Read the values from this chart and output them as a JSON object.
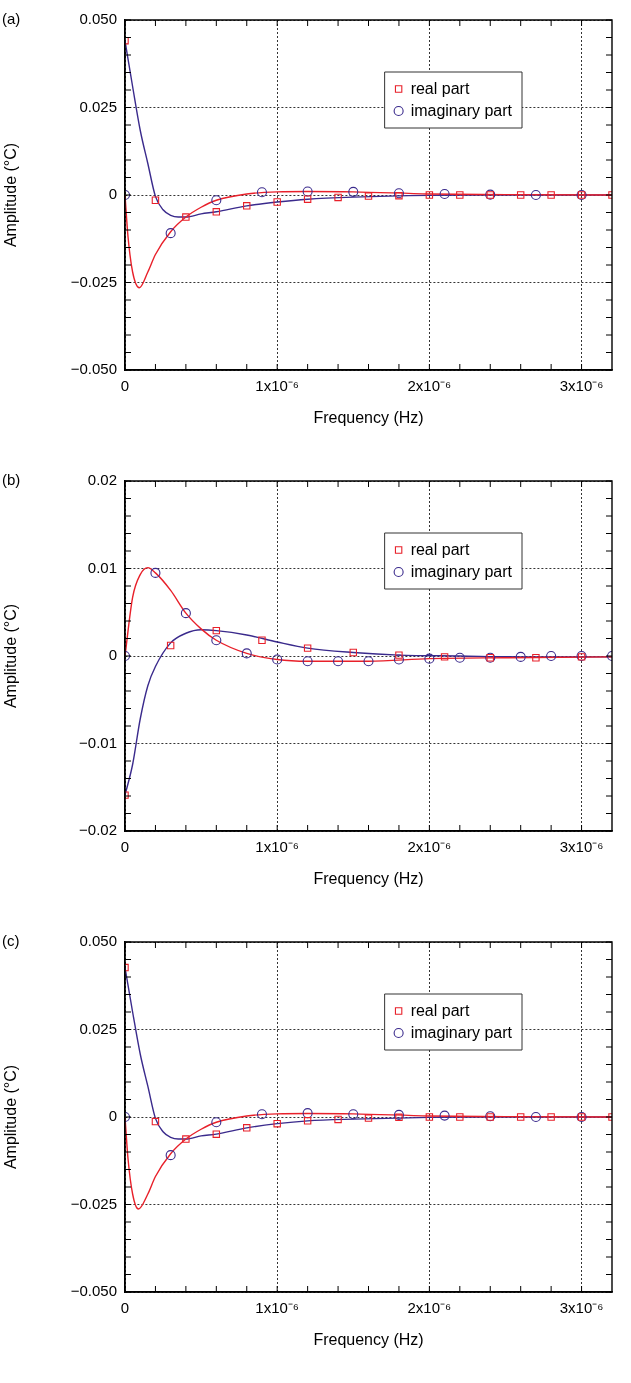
{
  "chart_data": [
    {
      "type": "scatter",
      "title": "(a)",
      "xlabel": "Frequency (Hz)",
      "ylabel": "Amplitude (°C)",
      "xlim": [
        0,
        3.2e-06
      ],
      "ylim": [
        -0.05,
        0.05
      ],
      "grid": true,
      "legend": "top right",
      "xticks": [
        {
          "value": 0,
          "label": "0"
        },
        {
          "value": 2e-07,
          "label": null
        },
        {
          "value": 4e-07,
          "label": null
        },
        {
          "value": 6e-07,
          "label": null
        },
        {
          "value": 8e-07,
          "label": null
        },
        {
          "value": 1e-06,
          "label": "1x10⁻⁶"
        },
        {
          "value": 1.2e-06,
          "label": null
        },
        {
          "value": 1.4e-06,
          "label": null
        },
        {
          "value": 1.6e-06,
          "label": null
        },
        {
          "value": 1.8e-06,
          "label": null
        },
        {
          "value": 2e-06,
          "label": "2x10⁻⁶"
        },
        {
          "value": 2.2e-06,
          "label": null
        },
        {
          "value": 2.4e-06,
          "label": null
        },
        {
          "value": 2.6e-06,
          "label": null
        },
        {
          "value": 2.8e-06,
          "label": null
        },
        {
          "value": 3e-06,
          "label": "3x10⁻⁶"
        }
      ],
      "yticks": [
        {
          "value": -0.05,
          "label": "−0.050"
        },
        {
          "value": -0.045,
          "label": null
        },
        {
          "value": -0.04,
          "label": null
        },
        {
          "value": -0.035,
          "label": null
        },
        {
          "value": -0.03,
          "label": null
        },
        {
          "value": -0.025,
          "label": "−0.025"
        },
        {
          "value": -0.02,
          "label": null
        },
        {
          "value": -0.015,
          "label": null
        },
        {
          "value": -0.01,
          "label": null
        },
        {
          "value": -0.005,
          "label": null
        },
        {
          "value": 0,
          "label": "0"
        },
        {
          "value": 0.005,
          "label": null
        },
        {
          "value": 0.01,
          "label": null
        },
        {
          "value": 0.015,
          "label": null
        },
        {
          "value": 0.02,
          "label": null
        },
        {
          "value": 0.025,
          "label": "0.025"
        },
        {
          "value": 0.03,
          "label": null
        },
        {
          "value": 0.035,
          "label": null
        },
        {
          "value": 0.04,
          "label": null
        },
        {
          "value": 0.045,
          "label": null
        },
        {
          "value": 0.05,
          "label": "0.050"
        }
      ],
      "series": [
        {
          "type": "line",
          "color": "#e8202a",
          "marker": "none",
          "x": [
            0,
            2e-08,
            5e-08,
            9.4e-08,
            1.5e-07,
            2e-07,
            3e-07,
            4e-07,
            5e-07,
            6e-07,
            8e-07,
            1e-06,
            1.2e-06,
            1.5e-06,
            2e-06,
            2.5e-06,
            3.2e-06
          ],
          "values": [
            0,
            -0.012,
            -0.022,
            -0.0265,
            -0.022,
            -0.017,
            -0.0105,
            -0.0063,
            -0.0035,
            -0.0015,
            0.0003,
            0.0009,
            0.001,
            0.0009,
            0.0003,
            0.0001,
            0
          ]
        },
        {
          "type": "line",
          "color": "#3a2a8c",
          "marker": "none",
          "x": [
            0,
            5e-08,
            1e-07,
            1.5e-07,
            2e-07,
            2.5e-07,
            3e-07,
            3.5e-07,
            4e-07,
            5e-07,
            6e-07,
            8e-07,
            1e-06,
            1.2e-06,
            1.5e-06,
            2e-06,
            2.5e-06,
            3.2e-06
          ],
          "values": [
            0.0441,
            0.031,
            0.0185,
            0.009,
            -0.0004,
            -0.0042,
            -0.0058,
            -0.0063,
            -0.0063,
            -0.0054,
            -0.0048,
            -0.0031,
            -0.002,
            -0.0012,
            -0.0006,
            -0.0001,
            0,
            0
          ]
        },
        {
          "name": "real part",
          "type": "scatter",
          "color": "#e8202a",
          "marker": "square",
          "x": [
            0,
            2e-07,
            4e-07,
            6e-07,
            8e-07,
            1e-06,
            1.2e-06,
            1.4e-06,
            1.6e-06,
            1.8e-06,
            2e-06,
            2.2e-06,
            2.4e-06,
            2.6e-06,
            2.8e-06,
            3e-06,
            3.2e-06
          ],
          "values": [
            0.0441,
            -0.0015,
            -0.0063,
            -0.0048,
            -0.0031,
            -0.002,
            -0.0012,
            -0.0007,
            -0.0003,
            -0.0002,
            0,
            0,
            0,
            0,
            0,
            0,
            0
          ]
        },
        {
          "name": "imaginary part",
          "type": "scatter",
          "color": "#3a2a8c",
          "marker": "circle",
          "x": [
            0,
            3e-07,
            6e-07,
            9e-07,
            1.2e-06,
            1.5e-06,
            1.8e-06,
            2.1e-06,
            2.4e-06,
            2.7e-06,
            3e-06
          ],
          "values": [
            0,
            -0.0109,
            -0.0015,
            0.0008,
            0.001,
            0.0009,
            0.0005,
            0.0003,
            0.0001,
            0,
            0
          ]
        }
      ]
    },
    {
      "type": "scatter",
      "title": "(b)",
      "xlabel": "Frequency (Hz)",
      "ylabel": "Amplitude (°C)",
      "xlim": [
        0,
        3.2e-06
      ],
      "ylim": [
        -0.02,
        0.02
      ],
      "grid": true,
      "legend": "top right",
      "xticks": [
        {
          "value": 0,
          "label": "0"
        },
        {
          "value": 2e-07,
          "label": null
        },
        {
          "value": 4e-07,
          "label": null
        },
        {
          "value": 6e-07,
          "label": null
        },
        {
          "value": 8e-07,
          "label": null
        },
        {
          "value": 1e-06,
          "label": "1x10⁻⁶"
        },
        {
          "value": 1.2e-06,
          "label": null
        },
        {
          "value": 1.4e-06,
          "label": null
        },
        {
          "value": 1.6e-06,
          "label": null
        },
        {
          "value": 1.8e-06,
          "label": null
        },
        {
          "value": 2e-06,
          "label": "2x10⁻⁶"
        },
        {
          "value": 2.2e-06,
          "label": null
        },
        {
          "value": 2.4e-06,
          "label": null
        },
        {
          "value": 2.6e-06,
          "label": null
        },
        {
          "value": 2.8e-06,
          "label": null
        },
        {
          "value": 3e-06,
          "label": "3x10⁻⁶"
        }
      ],
      "yticks": [
        {
          "value": -0.02,
          "label": "−0.02"
        },
        {
          "value": -0.018,
          "label": null
        },
        {
          "value": -0.016,
          "label": null
        },
        {
          "value": -0.014,
          "label": null
        },
        {
          "value": -0.012,
          "label": null
        },
        {
          "value": -0.01,
          "label": "−0.01"
        },
        {
          "value": -0.008,
          "label": null
        },
        {
          "value": -0.006,
          "label": null
        },
        {
          "value": -0.004,
          "label": null
        },
        {
          "value": -0.002,
          "label": null
        },
        {
          "value": 0,
          "label": "0"
        },
        {
          "value": 0.002,
          "label": null
        },
        {
          "value": 0.004,
          "label": null
        },
        {
          "value": 0.006,
          "label": null
        },
        {
          "value": 0.008,
          "label": null
        },
        {
          "value": 0.01,
          "label": "0.01"
        },
        {
          "value": 0.012,
          "label": null
        },
        {
          "value": 0.014,
          "label": null
        },
        {
          "value": 0.016,
          "label": null
        },
        {
          "value": 0.018,
          "label": null
        },
        {
          "value": 0.02,
          "label": "0.02"
        }
      ],
      "series": [
        {
          "type": "line",
          "color": "#e8202a",
          "marker": "none",
          "x": [
            0,
            5e-08,
            1e-07,
            1.5e-07,
            2e-07,
            3e-07,
            4e-07,
            5e-07,
            6e-07,
            8e-07,
            1e-06,
            1.2e-06,
            1.6e-06,
            2e-06,
            2.5e-06,
            3.2e-06
          ],
          "values": [
            0,
            0.0067,
            0.0093,
            0.0101,
            0.0095,
            0.0075,
            0.0049,
            0.0031,
            0.0018,
            0.0003,
            -0.0004,
            -0.0006,
            -0.0006,
            -0.0003,
            -0.0002,
            -0.0001
          ]
        },
        {
          "type": "line",
          "color": "#3a2a8c",
          "marker": "none",
          "x": [
            0,
            5e-08,
            1e-07,
            1.5e-07,
            2e-07,
            3e-07,
            4e-07,
            5e-07,
            6e-07,
            8e-07,
            1e-06,
            1.2e-06,
            1.5e-06,
            1.8e-06,
            2.2e-06,
            2.6e-06,
            3.2e-06
          ],
          "values": [
            -0.0159,
            -0.0124,
            -0.0072,
            -0.0034,
            -0.0012,
            0.0015,
            0.0026,
            0.003,
            0.0029,
            0.0024,
            0.0016,
            0.0009,
            0.0004,
            0.0001,
            0,
            -0.0001,
            -0.0001
          ]
        },
        {
          "name": "real part",
          "type": "scatter",
          "color": "#e8202a",
          "marker": "square",
          "x": [
            0,
            3e-07,
            6e-07,
            9e-07,
            1.2e-06,
            1.5e-06,
            1.8e-06,
            2.1e-06,
            2.4e-06,
            2.7e-06,
            3e-06
          ],
          "values": [
            -0.0159,
            0.0012,
            0.0029,
            0.0018,
            0.0009,
            0.0004,
            0.0001,
            -0.0001,
            -0.0002,
            -0.0002,
            -0.0001
          ]
        },
        {
          "name": "imaginary part",
          "type": "scatter",
          "color": "#3a2a8c",
          "marker": "circle",
          "x": [
            0,
            2e-07,
            4e-07,
            6e-07,
            8e-07,
            1e-06,
            1.2e-06,
            1.4e-06,
            1.6e-06,
            1.8e-06,
            2e-06,
            2.2e-06,
            2.4e-06,
            2.6e-06,
            2.8e-06,
            3e-06,
            3.2e-06
          ],
          "values": [
            0,
            0.0095,
            0.0049,
            0.0018,
            0.0003,
            -0.0004,
            -0.0006,
            -0.0006,
            -0.0006,
            -0.0004,
            -0.0003,
            -0.0002,
            -0.0002,
            -0.0001,
            0,
            0,
            0
          ]
        }
      ]
    },
    {
      "type": "scatter",
      "title": "(c)",
      "xlabel": "Frequency (Hz)",
      "ylabel": "Amplitude (°C)",
      "xlim": [
        0,
        3.2e-06
      ],
      "ylim": [
        -0.05,
        0.05
      ],
      "grid": true,
      "legend": "top right",
      "xticks": [
        {
          "value": 0,
          "label": "0"
        },
        {
          "value": 2e-07,
          "label": null
        },
        {
          "value": 4e-07,
          "label": null
        },
        {
          "value": 6e-07,
          "label": null
        },
        {
          "value": 8e-07,
          "label": null
        },
        {
          "value": 1e-06,
          "label": "1x10⁻⁶"
        },
        {
          "value": 1.2e-06,
          "label": null
        },
        {
          "value": 1.4e-06,
          "label": null
        },
        {
          "value": 1.6e-06,
          "label": null
        },
        {
          "value": 1.8e-06,
          "label": null
        },
        {
          "value": 2e-06,
          "label": "2x10⁻⁶"
        },
        {
          "value": 2.2e-06,
          "label": null
        },
        {
          "value": 2.4e-06,
          "label": null
        },
        {
          "value": 2.6e-06,
          "label": null
        },
        {
          "value": 2.8e-06,
          "label": null
        },
        {
          "value": 3e-06,
          "label": "3x10⁻⁶"
        }
      ],
      "yticks": [
        {
          "value": -0.05,
          "label": "−0.050"
        },
        {
          "value": -0.045,
          "label": null
        },
        {
          "value": -0.04,
          "label": null
        },
        {
          "value": -0.035,
          "label": null
        },
        {
          "value": -0.03,
          "label": null
        },
        {
          "value": -0.025,
          "label": "−0.025"
        },
        {
          "value": -0.02,
          "label": null
        },
        {
          "value": -0.015,
          "label": null
        },
        {
          "value": -0.01,
          "label": null
        },
        {
          "value": -0.005,
          "label": null
        },
        {
          "value": 0,
          "label": "0"
        },
        {
          "value": 0.005,
          "label": null
        },
        {
          "value": 0.01,
          "label": null
        },
        {
          "value": 0.015,
          "label": null
        },
        {
          "value": 0.02,
          "label": null
        },
        {
          "value": 0.025,
          "label": "0.025"
        },
        {
          "value": 0.03,
          "label": null
        },
        {
          "value": 0.035,
          "label": null
        },
        {
          "value": 0.04,
          "label": null
        },
        {
          "value": 0.045,
          "label": null
        },
        {
          "value": 0.05,
          "label": "0.050"
        }
      ],
      "series": [
        {
          "type": "line",
          "color": "#e8202a",
          "marker": "none",
          "x": [
            0,
            2e-08,
            5e-08,
            8.8e-08,
            1.5e-07,
            2e-07,
            3e-07,
            4e-07,
            5e-07,
            6e-07,
            8e-07,
            1e-06,
            1.2e-06,
            1.5e-06,
            2e-06,
            2.5e-06,
            3.2e-06
          ],
          "values": [
            0,
            -0.012,
            -0.022,
            -0.0263,
            -0.022,
            -0.017,
            -0.0105,
            -0.0063,
            -0.0035,
            -0.0015,
            0.0003,
            0.0009,
            0.001,
            0.0009,
            0.0003,
            0.0001,
            0
          ]
        },
        {
          "type": "line",
          "color": "#3a2a8c",
          "marker": "none",
          "x": [
            0,
            5e-08,
            1e-07,
            1.5e-07,
            2e-07,
            2.5e-07,
            3e-07,
            3.5e-07,
            4e-07,
            5e-07,
            6e-07,
            8e-07,
            1e-06,
            1.2e-06,
            1.5e-06,
            2e-06,
            2.5e-06,
            3.2e-06
          ],
          "values": [
            0.0427,
            0.03,
            0.018,
            0.0088,
            -0.0004,
            -0.0042,
            -0.0058,
            -0.0063,
            -0.0063,
            -0.0054,
            -0.0049,
            -0.0031,
            -0.0019,
            -0.0011,
            -0.0006,
            -0.0001,
            0,
            0
          ]
        },
        {
          "name": "real part",
          "type": "scatter",
          "color": "#e8202a",
          "marker": "square",
          "x": [
            0,
            2e-07,
            4e-07,
            6e-07,
            8e-07,
            1e-06,
            1.2e-06,
            1.4e-06,
            1.6e-06,
            1.8e-06,
            2e-06,
            2.2e-06,
            2.4e-06,
            2.6e-06,
            2.8e-06,
            3e-06,
            3.2e-06
          ],
          "values": [
            0.0427,
            -0.0013,
            -0.0063,
            -0.0049,
            -0.0031,
            -0.0019,
            -0.0011,
            -0.0007,
            -0.0003,
            -0.0001,
            0,
            0,
            0,
            0,
            0,
            0,
            0
          ]
        },
        {
          "name": "imaginary part",
          "type": "scatter",
          "color": "#3a2a8c",
          "marker": "circle",
          "x": [
            0,
            3e-07,
            6e-07,
            9e-07,
            1.2e-06,
            1.5e-06,
            1.8e-06,
            2.1e-06,
            2.4e-06,
            2.7e-06,
            3e-06
          ],
          "values": [
            0,
            -0.0109,
            -0.0015,
            0.0008,
            0.0011,
            0.0008,
            0.0006,
            0.0004,
            0.0002,
            0,
            0
          ]
        }
      ]
    }
  ]
}
